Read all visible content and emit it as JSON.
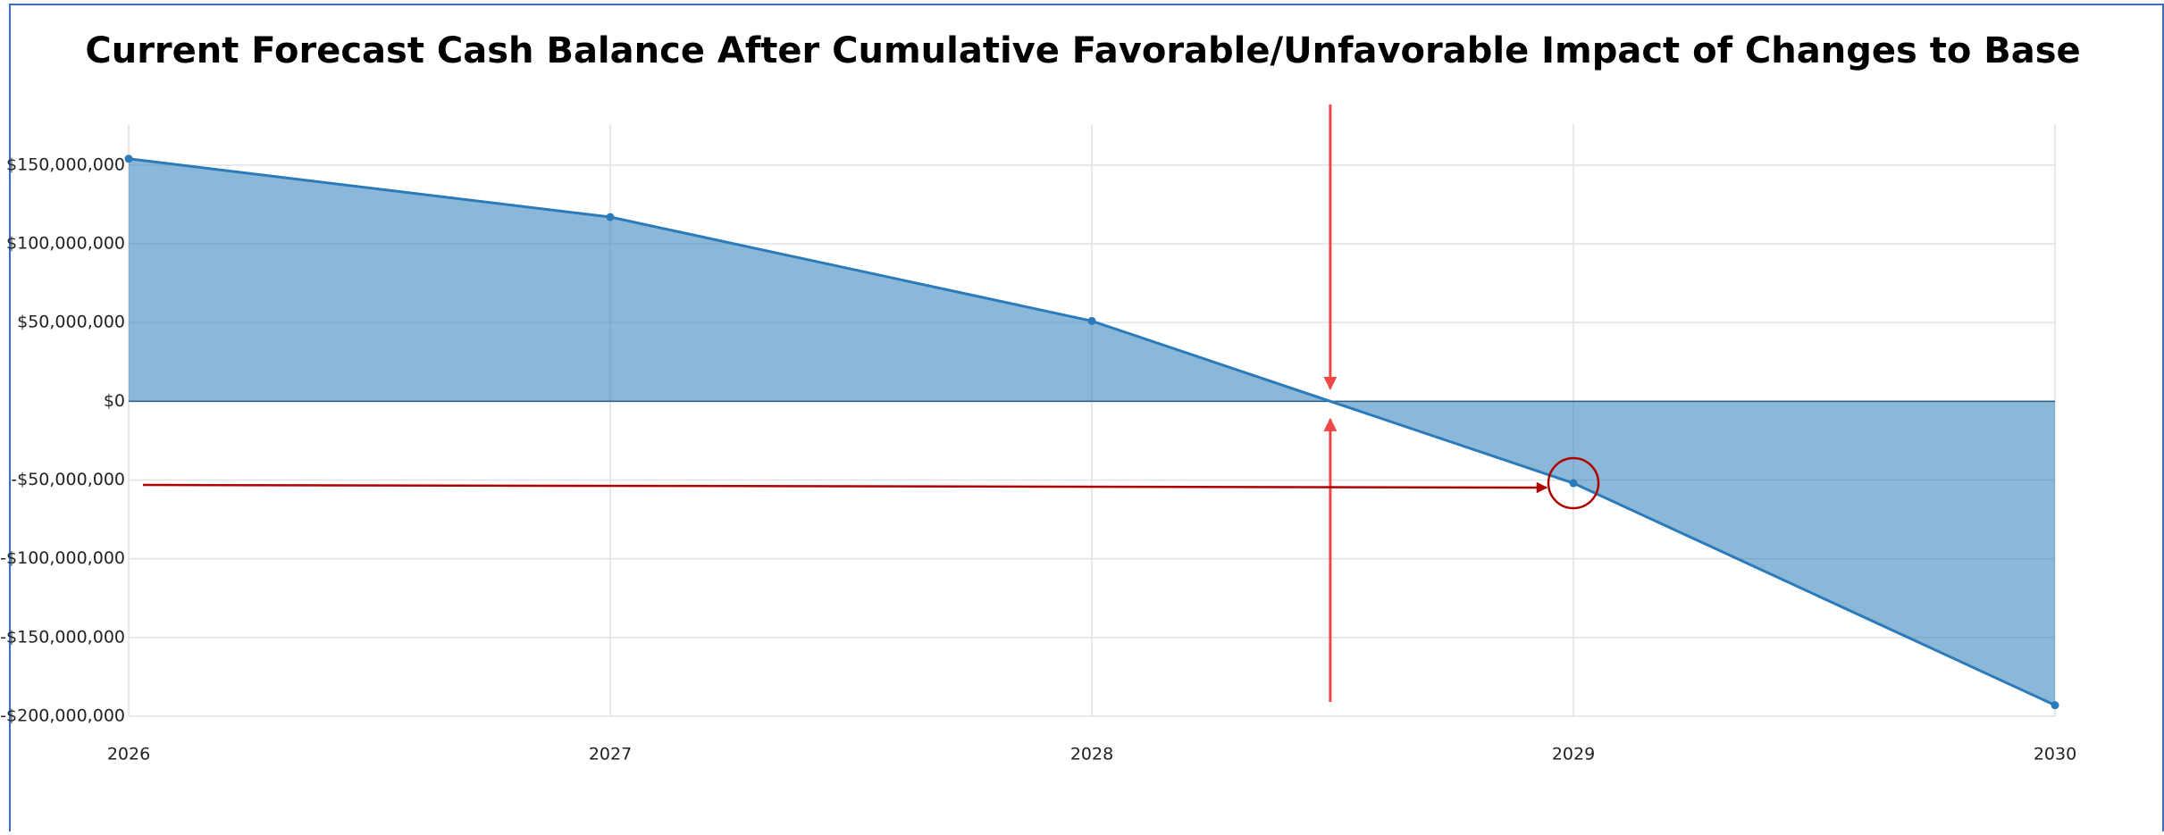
{
  "chart_data": {
    "type": "area",
    "title": "Current Forecast Cash Balance After Cumulative Favorable/Unfavorable Impact of Changes to Base",
    "x": [
      2026,
      2027,
      2028,
      2029,
      2030
    ],
    "series": [
      {
        "name": "Cash Balance",
        "color": "#2b7bba",
        "values": [
          154000000,
          117000000,
          51000000,
          -52000000,
          -193000000
        ]
      }
    ],
    "xlim": [
      2026,
      2030
    ],
    "xticks": [
      2026,
      2027,
      2028,
      2029,
      2030
    ],
    "ylim": [
      -200000000,
      176000000
    ],
    "yticks": [
      {
        "value": 150000000,
        "label": "$150,000,000"
      },
      {
        "value": 100000000,
        "label": "$100,000,000"
      },
      {
        "value": 50000000,
        "label": "$50,000,000"
      },
      {
        "value": 0,
        "label": "$0"
      },
      {
        "value": -50000000,
        "label": "-$50,000,000"
      },
      {
        "value": -100000000,
        "label": "-$100,000,000"
      },
      {
        "value": -150000000,
        "label": "-$150,000,000"
      },
      {
        "value": -200000000,
        "label": "-$200,000,000"
      }
    ],
    "grid": true
  }
}
